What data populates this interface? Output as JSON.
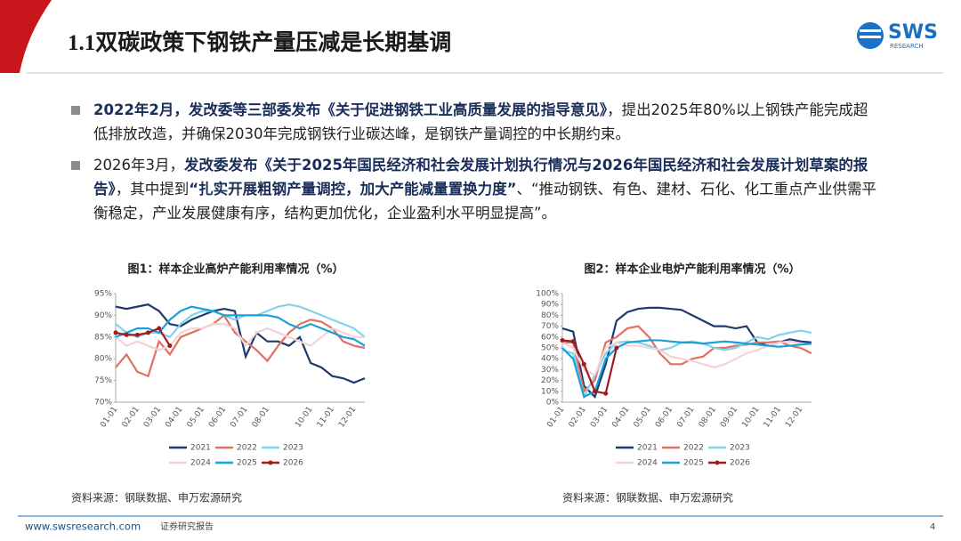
{
  "header": {
    "title": "1.1双碳政策下钢铁产量压减是长期基调",
    "logo": "SWS",
    "logo_sub": "RESEARCH"
  },
  "bullets": [
    [
      {
        "text": "2022年2月，发改委等三部委发布《关于促进钢铁工业高质量发展的指导意见》",
        "bold": true
      },
      {
        "text": "，提出2025年80%以上钢铁产能完成超低排放改造，并确保2030年完成钢铁行业碳达峰，是钢铁产量调控的中长期约束。",
        "bold": false
      }
    ],
    [
      {
        "text": "2026年3月，",
        "bold": false
      },
      {
        "text": "发改委发布《关于2025年国民经济和社会发展计划执行情况与2026年国民经济和社会发展计划草案的报告》",
        "bold": true
      },
      {
        "text": "，其中提到",
        "bold": false
      },
      {
        "text": "“扎实开展粗钢产量调控，加大产能减量置换力度”",
        "bold": true
      },
      {
        "text": "、“推动钢铁、有色、建材、石化、化工重点产业供需平衡稳定，产业发展健康有序，结构更加优化，企业盈利水平明显提高”。",
        "bold": false
      }
    ]
  ],
  "chart_data": [
    {
      "type": "line",
      "title": "图1：样本企业高炉产能利用率情况（%）",
      "source": "资料来源：钢联数据、申万宏源研究",
      "categories": [
        "01-01",
        null,
        "02-01",
        null,
        "03-01",
        null,
        "04-01",
        null,
        "05-01",
        null,
        "06-01",
        null,
        "07-01",
        null,
        "08-01",
        null,
        null,
        null,
        "10-01",
        null,
        "11-01",
        null,
        "12-01",
        null
      ],
      "ylim": [
        70,
        95
      ],
      "yticks": [
        {
          "value": 70,
          "label": "70%"
        },
        {
          "value": 75,
          "label": "75%"
        },
        {
          "value": 80,
          "label": "80%"
        },
        {
          "value": 85,
          "label": "85%"
        },
        {
          "value": 90,
          "label": "90%"
        },
        {
          "value": 95,
          "label": "95%"
        }
      ],
      "series": [
        {
          "name": "2021",
          "color": "#1f3a6e",
          "values": [
            92,
            91.5,
            92,
            92.5,
            91,
            88,
            87.5,
            89,
            90,
            91,
            91.5,
            91,
            80.5,
            86,
            84,
            84,
            83,
            85,
            79,
            78,
            76,
            75.5,
            74.5,
            75.5
          ]
        },
        {
          "name": "2022",
          "color": "#e07060",
          "values": [
            78,
            81,
            77,
            76,
            84,
            81,
            85,
            86,
            87,
            88,
            90,
            86,
            84,
            82,
            79.5,
            83,
            86,
            88,
            89,
            88.5,
            87,
            84,
            83,
            82.5
          ]
        },
        {
          "name": "2023",
          "color": "#7fd3ea",
          "values": [
            88,
            86,
            85,
            86,
            86,
            85,
            88,
            90,
            91,
            91,
            90,
            89,
            90,
            90,
            91,
            92,
            92.5,
            92,
            91,
            90,
            89,
            88,
            87,
            85
          ]
        },
        {
          "name": "2024",
          "color": "#f2d3da",
          "values": [
            85,
            83,
            84,
            83,
            82,
            83,
            86,
            87,
            87,
            88,
            88,
            87,
            83,
            86,
            87,
            86,
            85,
            84,
            83,
            85,
            87,
            86,
            85,
            85
          ]
        },
        {
          "name": "2025",
          "color": "#1aa0d8",
          "values": [
            85,
            86,
            87,
            87,
            86,
            89,
            91,
            92,
            91.5,
            91,
            90,
            90,
            90,
            90,
            90,
            89.5,
            88,
            87,
            88,
            87,
            86,
            85,
            84.5,
            83
          ]
        },
        {
          "name": "2026",
          "color": "#a01c1c",
          "markers": true,
          "values": [
            86,
            85.5,
            85.5,
            86,
            87,
            83,
            null,
            null,
            null,
            null,
            null,
            null,
            null,
            null,
            null,
            null,
            null,
            null,
            null,
            null,
            null,
            null,
            null,
            null
          ]
        }
      ]
    },
    {
      "type": "line",
      "title": "图2：样本企业电炉产能利用率情况（%）",
      "source": "资料来源：钢联数据、申万宏源研究",
      "categories": [
        "01-01",
        null,
        "02-01",
        null,
        "03-01",
        null,
        "04-01",
        null,
        "05-01",
        null,
        "06-01",
        null,
        "07-01",
        null,
        "08-01",
        null,
        "09-01",
        null,
        "10-01",
        null,
        "11-01",
        null,
        "12-01",
        null
      ],
      "ylim": [
        0,
        100
      ],
      "yticks": [
        {
          "value": 0,
          "label": "0%"
        },
        {
          "value": 10,
          "label": "10%"
        },
        {
          "value": 20,
          "label": "20%"
        },
        {
          "value": 30,
          "label": "30%"
        },
        {
          "value": 40,
          "label": "40%"
        },
        {
          "value": 50,
          "label": "50%"
        },
        {
          "value": 60,
          "label": "60%"
        },
        {
          "value": 70,
          "label": "70%"
        },
        {
          "value": 80,
          "label": "80%"
        },
        {
          "value": 90,
          "label": "90%"
        },
        {
          "value": 100,
          "label": "100%"
        }
      ],
      "series": [
        {
          "name": "2021",
          "color": "#1f3a6e",
          "values": [
            68,
            65,
            15,
            5,
            35,
            75,
            83,
            86,
            87,
            87,
            86,
            85,
            80,
            75,
            70,
            70,
            68,
            70,
            55,
            52,
            55,
            58,
            56,
            55
          ]
        },
        {
          "name": "2022",
          "color": "#e07060",
          "values": [
            55,
            55,
            10,
            20,
            55,
            60,
            68,
            70,
            60,
            45,
            35,
            35,
            40,
            42,
            50,
            50,
            52,
            53,
            55,
            55,
            56,
            52,
            50,
            45
          ]
        },
        {
          "name": "2023",
          "color": "#7fd3ea",
          "values": [
            48,
            45,
            5,
            25,
            45,
            55,
            56,
            55,
            52,
            48,
            50,
            55,
            56,
            54,
            50,
            48,
            50,
            55,
            60,
            58,
            62,
            64,
            66,
            64
          ]
        },
        {
          "name": "2024",
          "color": "#f2d3da",
          "values": [
            55,
            50,
            30,
            25,
            50,
            55,
            52,
            52,
            50,
            48,
            42,
            40,
            38,
            35,
            32,
            35,
            40,
            45,
            48,
            52,
            55,
            56,
            54,
            53
          ]
        },
        {
          "name": "2025",
          "color": "#1aa0d8",
          "values": [
            50,
            40,
            5,
            10,
            40,
            50,
            55,
            56,
            57,
            57,
            56,
            55,
            55,
            54,
            55,
            56,
            55,
            54,
            53,
            52,
            51,
            52,
            53,
            54
          ]
        },
        {
          "name": "2026",
          "color": "#a01c1c",
          "markers": true,
          "values": [
            57,
            56,
            35,
            10,
            8,
            50,
            null,
            null,
            null,
            null,
            null,
            null,
            null,
            null,
            null,
            null,
            null,
            null,
            null,
            null,
            null,
            null,
            null,
            null
          ]
        }
      ]
    }
  ],
  "footer": {
    "url": "www.swsresearch.com",
    "label": "证券研究报告",
    "page": 4
  }
}
